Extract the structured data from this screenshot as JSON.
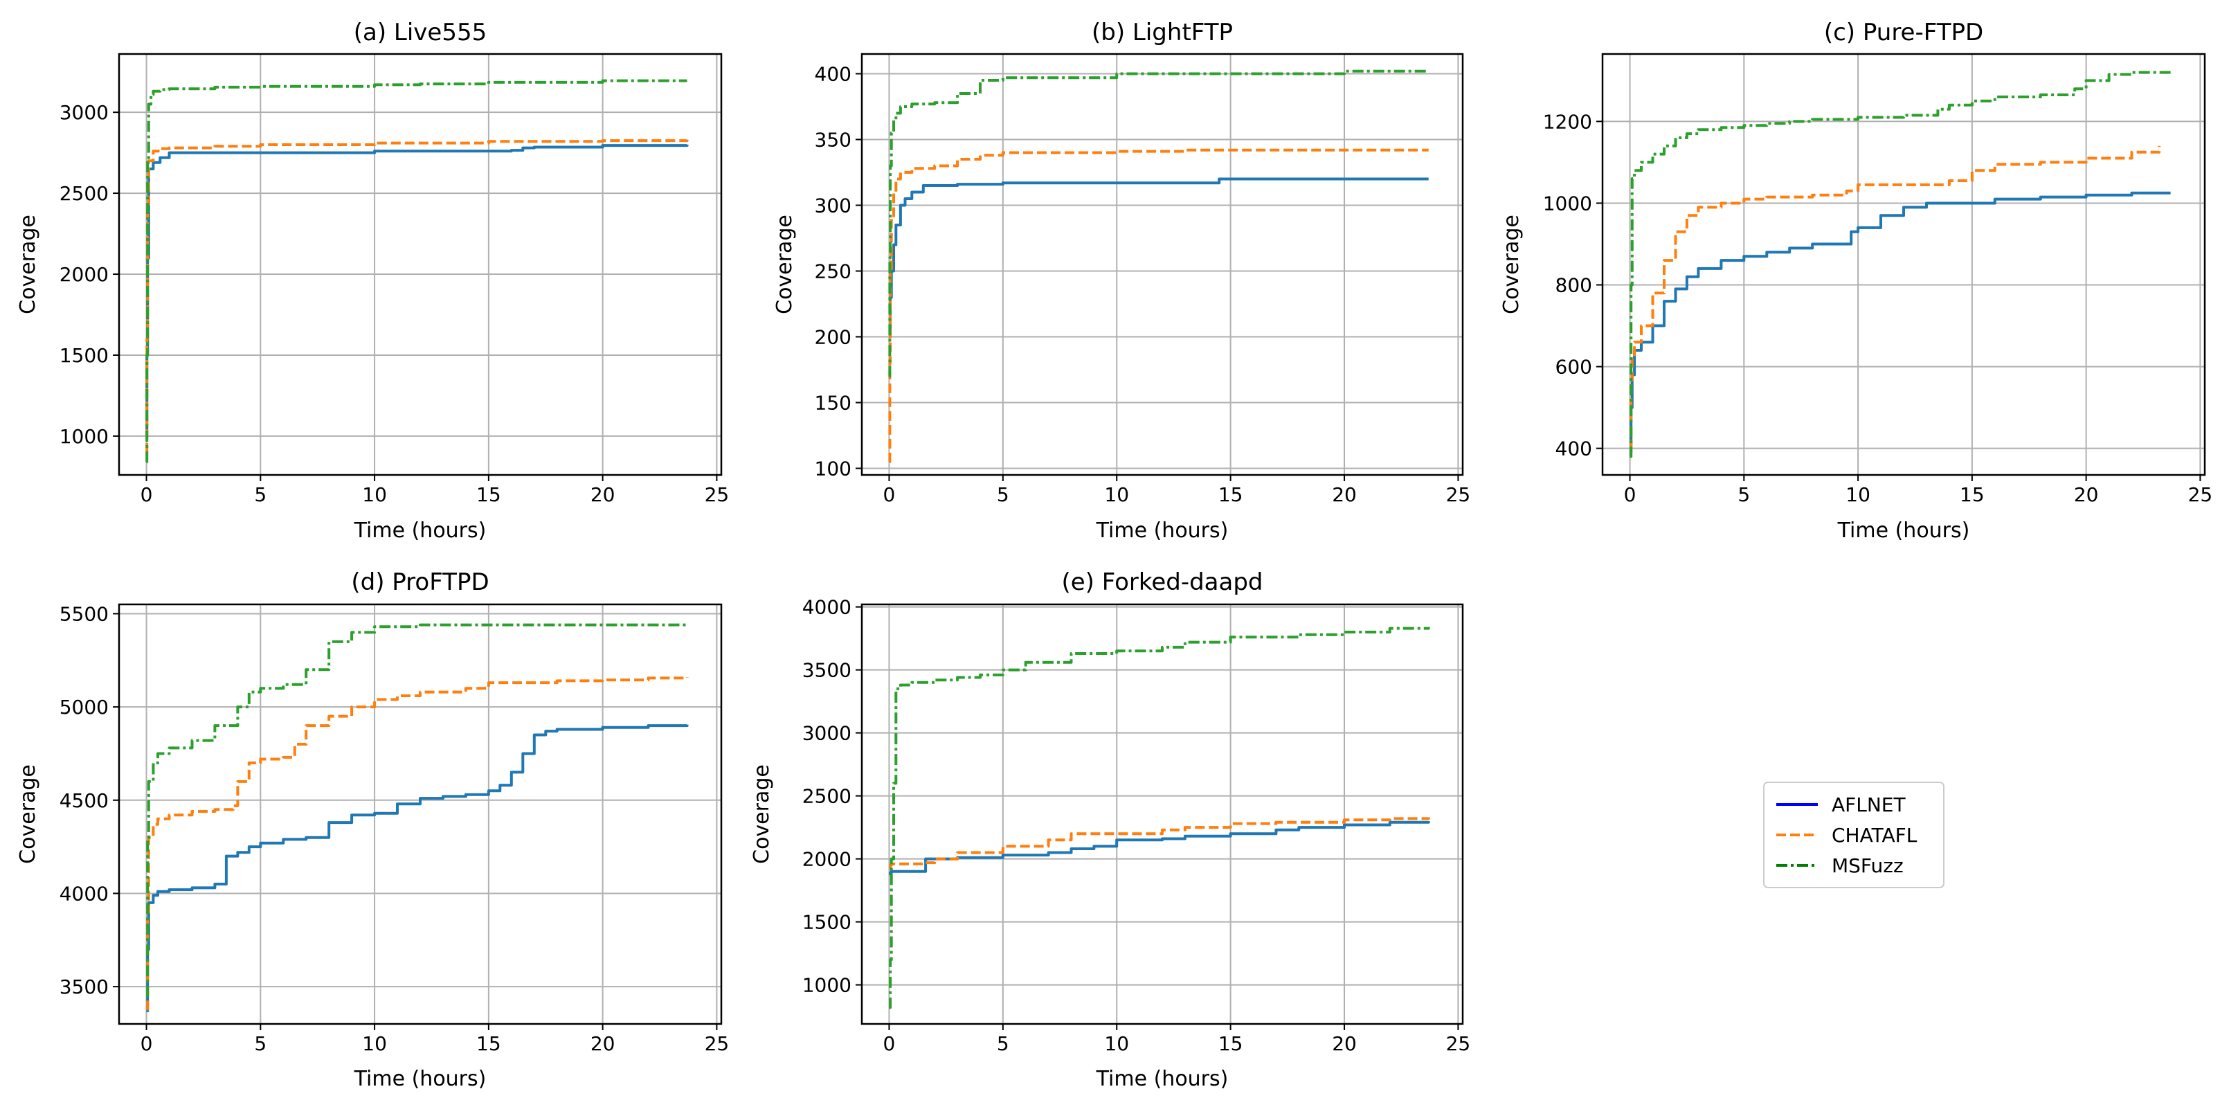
{
  "legend": {
    "placement": "right-middle",
    "entries": [
      {
        "label": "AFLNET",
        "color": "#0000ff",
        "dash": "solid"
      },
      {
        "label": "CHATAFL",
        "color": "#ff7f0e",
        "dash": "dashed"
      },
      {
        "label": "MSFuzz",
        "color": "#008000",
        "dash": "dashdot"
      }
    ]
  },
  "colors": {
    "aflnet": "#1f77b4",
    "chatafl": "#ff7f0e",
    "msfuzz": "#2ca02c",
    "grid": "#b0b0b0"
  },
  "chart_data": [
    {
      "type": "line",
      "title": "(a) Live555",
      "xlabel": "Time (hours)",
      "ylabel": "Coverage",
      "xlim": [
        -1.2,
        25.2
      ],
      "ylim": [
        760,
        3360
      ],
      "xticks": [
        0,
        5,
        10,
        15,
        20,
        25
      ],
      "yticks": [
        1000,
        1500,
        2000,
        2500,
        3000
      ],
      "grid": true,
      "series": [
        {
          "name": "AFLNET",
          "x": [
            0,
            0.02,
            0.05,
            0.1,
            0.3,
            0.6,
            1,
            2,
            5,
            10,
            15,
            16,
            16.5,
            17,
            20,
            23.7
          ],
          "y": [
            1000,
            1500,
            2100,
            2650,
            2690,
            2720,
            2750,
            2750,
            2750,
            2760,
            2760,
            2765,
            2780,
            2785,
            2795,
            2800
          ]
        },
        {
          "name": "CHATAFL",
          "x": [
            0,
            0.02,
            0.05,
            0.1,
            0.3,
            0.6,
            1,
            3,
            5,
            10,
            15,
            20,
            23.7
          ],
          "y": [
            900,
            1600,
            2400,
            2700,
            2760,
            2775,
            2780,
            2790,
            2800,
            2810,
            2820,
            2825,
            2830
          ]
        },
        {
          "name": "MSFuzz",
          "x": [
            0,
            0.02,
            0.05,
            0.1,
            0.2,
            0.3,
            0.6,
            1,
            3,
            5,
            10,
            12,
            15,
            20,
            23.7
          ],
          "y": [
            840,
            1500,
            2700,
            3050,
            3110,
            3130,
            3140,
            3145,
            3155,
            3160,
            3170,
            3175,
            3185,
            3195,
            3195
          ]
        }
      ]
    },
    {
      "type": "line",
      "title": "(b) LightFTP",
      "xlabel": "Time (hours)",
      "ylabel": "Coverage",
      "xlim": [
        -1.2,
        25.2
      ],
      "ylim": [
        95,
        415
      ],
      "xticks": [
        0,
        5,
        10,
        15,
        20,
        25
      ],
      "yticks": [
        100,
        150,
        200,
        250,
        300,
        350,
        400
      ],
      "grid": true,
      "series": [
        {
          "name": "AFLNET",
          "x": [
            0,
            0.05,
            0.1,
            0.2,
            0.3,
            0.5,
            0.7,
            1,
            1.5,
            3,
            5,
            10,
            14,
            14.5,
            20,
            23.7
          ],
          "y": [
            200,
            230,
            250,
            270,
            285,
            300,
            305,
            310,
            315,
            316,
            317,
            317,
            317,
            320,
            320,
            320
          ]
        },
        {
          "name": "CHATAFL",
          "x": [
            0,
            0.03,
            0.05,
            0.1,
            0.2,
            0.3,
            0.5,
            1,
            2,
            3,
            4,
            5,
            8,
            10,
            13,
            15,
            20,
            23.7
          ],
          "y": [
            105,
            180,
            250,
            290,
            310,
            320,
            325,
            328,
            330,
            335,
            338,
            340,
            340,
            341,
            342,
            342,
            342,
            342
          ]
        },
        {
          "name": "MSFuzz",
          "x": [
            0,
            0.03,
            0.05,
            0.1,
            0.2,
            0.3,
            0.5,
            1,
            2,
            3,
            4,
            5,
            8,
            10,
            15,
            20,
            23.7
          ],
          "y": [
            170,
            260,
            330,
            355,
            365,
            370,
            375,
            377,
            378,
            385,
            395,
            397,
            397,
            400,
            400,
            402,
            402
          ]
        }
      ]
    },
    {
      "type": "line",
      "title": "(c) Pure-FTPD",
      "xlabel": "Time (hours)",
      "ylabel": "Coverage",
      "xlim": [
        -1.2,
        25.2
      ],
      "ylim": [
        335,
        1365
      ],
      "xticks": [
        0,
        5,
        10,
        15,
        20,
        25
      ],
      "yticks": [
        400,
        600,
        800,
        1000,
        1200
      ],
      "grid": true,
      "series": [
        {
          "name": "AFLNET",
          "x": [
            0,
            0.05,
            0.1,
            0.2,
            0.5,
            1,
            1.5,
            2,
            2.5,
            3,
            4,
            5,
            6,
            7,
            8,
            9,
            9.7,
            10,
            11,
            12,
            13,
            14,
            15,
            16,
            18,
            20,
            22,
            23.7
          ],
          "y": [
            390,
            500,
            580,
            640,
            660,
            700,
            760,
            790,
            820,
            840,
            860,
            870,
            880,
            890,
            900,
            900,
            930,
            940,
            970,
            990,
            1000,
            1000,
            1000,
            1010,
            1015,
            1020,
            1025,
            1025
          ]
        },
        {
          "name": "CHATAFL",
          "x": [
            0,
            0.05,
            0.1,
            0.2,
            0.5,
            1,
            1.5,
            2,
            2.5,
            3,
            4,
            5,
            6,
            8,
            9.5,
            10,
            12,
            14,
            15,
            16,
            18,
            20,
            22,
            23.2
          ],
          "y": [
            400,
            560,
            620,
            660,
            700,
            780,
            860,
            930,
            970,
            990,
            1000,
            1010,
            1015,
            1020,
            1030,
            1045,
            1045,
            1055,
            1080,
            1095,
            1100,
            1110,
            1125,
            1140
          ]
        },
        {
          "name": "MSFuzz",
          "x": [
            0,
            0.05,
            0.1,
            0.2,
            0.5,
            1,
            1.5,
            2,
            2.5,
            3,
            4,
            5,
            6,
            7,
            8,
            9,
            10,
            12,
            13.5,
            14,
            15,
            16,
            18,
            19.5,
            20,
            21,
            22,
            23.7
          ],
          "y": [
            380,
            800,
            1060,
            1080,
            1100,
            1120,
            1140,
            1160,
            1170,
            1180,
            1185,
            1190,
            1195,
            1200,
            1205,
            1205,
            1210,
            1215,
            1230,
            1240,
            1250,
            1260,
            1265,
            1280,
            1300,
            1315,
            1320,
            1320
          ]
        }
      ]
    },
    {
      "type": "line",
      "title": "(d) ProFTPD",
      "xlabel": "Time (hours)",
      "ylabel": "Coverage",
      "xlim": [
        -1.2,
        25.2
      ],
      "ylim": [
        3300,
        5550
      ],
      "xticks": [
        0,
        5,
        10,
        15,
        20,
        25
      ],
      "yticks": [
        3500,
        4000,
        4500,
        5000,
        5500
      ],
      "grid": true,
      "series": [
        {
          "name": "AFLNET",
          "x": [
            0,
            0.05,
            0.1,
            0.3,
            0.5,
            1,
            2,
            3,
            3.5,
            4,
            4.5,
            5,
            6,
            7,
            8,
            9,
            10,
            11,
            12,
            13,
            14,
            15,
            15.5,
            16,
            16.5,
            17,
            17.5,
            18,
            20,
            22,
            23.7
          ],
          "y": [
            3370,
            3700,
            3950,
            3990,
            4010,
            4020,
            4030,
            4050,
            4200,
            4220,
            4250,
            4270,
            4290,
            4300,
            4380,
            4420,
            4430,
            4480,
            4510,
            4520,
            4530,
            4550,
            4580,
            4650,
            4750,
            4850,
            4870,
            4880,
            4890,
            4900,
            4905
          ]
        },
        {
          "name": "CHATAFL",
          "x": [
            0,
            0.05,
            0.1,
            0.3,
            0.5,
            1,
            2,
            3,
            3.8,
            4,
            4.5,
            5,
            6,
            6.5,
            7,
            8,
            9,
            10,
            11,
            12,
            14,
            15,
            18,
            20,
            22,
            23.7
          ],
          "y": [
            3380,
            3900,
            4300,
            4370,
            4400,
            4420,
            4440,
            4450,
            4470,
            4600,
            4700,
            4720,
            4730,
            4800,
            4900,
            4950,
            5000,
            5040,
            5060,
            5080,
            5100,
            5130,
            5140,
            5145,
            5155,
            5160
          ]
        },
        {
          "name": "MSFuzz",
          "x": [
            0,
            0.05,
            0.1,
            0.3,
            0.5,
            1,
            2,
            3,
            4,
            4.5,
            5,
            6,
            7,
            8,
            9,
            10,
            12,
            15,
            20,
            23.7
          ],
          "y": [
            3450,
            4300,
            4600,
            4700,
            4750,
            4780,
            4820,
            4900,
            5000,
            5080,
            5100,
            5120,
            5200,
            5350,
            5400,
            5430,
            5440,
            5440,
            5440,
            5440
          ]
        }
      ]
    },
    {
      "type": "line",
      "title": "(e) Forked-daapd",
      "xlabel": "Time (hours)",
      "ylabel": "Coverage",
      "xlim": [
        -1.2,
        25.2
      ],
      "ylim": [
        690,
        4020
      ],
      "xticks": [
        0,
        5,
        10,
        15,
        20,
        25
      ],
      "yticks": [
        1000,
        1500,
        2000,
        2500,
        3000,
        3500,
        4000
      ],
      "grid": true,
      "series": [
        {
          "name": "AFLNET",
          "x": [
            0,
            0.05,
            0.1,
            1.5,
            1.6,
            3,
            5,
            7,
            8,
            9,
            10,
            12,
            13,
            15,
            17,
            18,
            20,
            22,
            23.7
          ],
          "y": [
            1880,
            1890,
            1900,
            1900,
            2000,
            2010,
            2030,
            2050,
            2080,
            2100,
            2150,
            2160,
            2180,
            2200,
            2230,
            2250,
            2270,
            2290,
            2300
          ]
        },
        {
          "name": "CHATAFL",
          "x": [
            0,
            0.05,
            0.1,
            1.5,
            2,
            3,
            5,
            7,
            8,
            9,
            10,
            12,
            13,
            15,
            17,
            20,
            22,
            23.7
          ],
          "y": [
            1930,
            1950,
            1960,
            1970,
            2000,
            2050,
            2100,
            2150,
            2200,
            2200,
            2200,
            2230,
            2250,
            2280,
            2290,
            2310,
            2320,
            2330
          ]
        },
        {
          "name": "MSFuzz",
          "x": [
            0,
            0.05,
            0.1,
            0.2,
            0.3,
            0.5,
            1,
            2,
            3,
            4,
            5,
            6,
            8,
            10,
            12,
            13,
            15,
            18,
            20,
            22,
            23.7
          ],
          "y": [
            820,
            1200,
            2000,
            2600,
            3350,
            3380,
            3400,
            3420,
            3440,
            3460,
            3500,
            3560,
            3630,
            3650,
            3680,
            3720,
            3760,
            3780,
            3800,
            3830,
            3840
          ]
        }
      ]
    }
  ]
}
